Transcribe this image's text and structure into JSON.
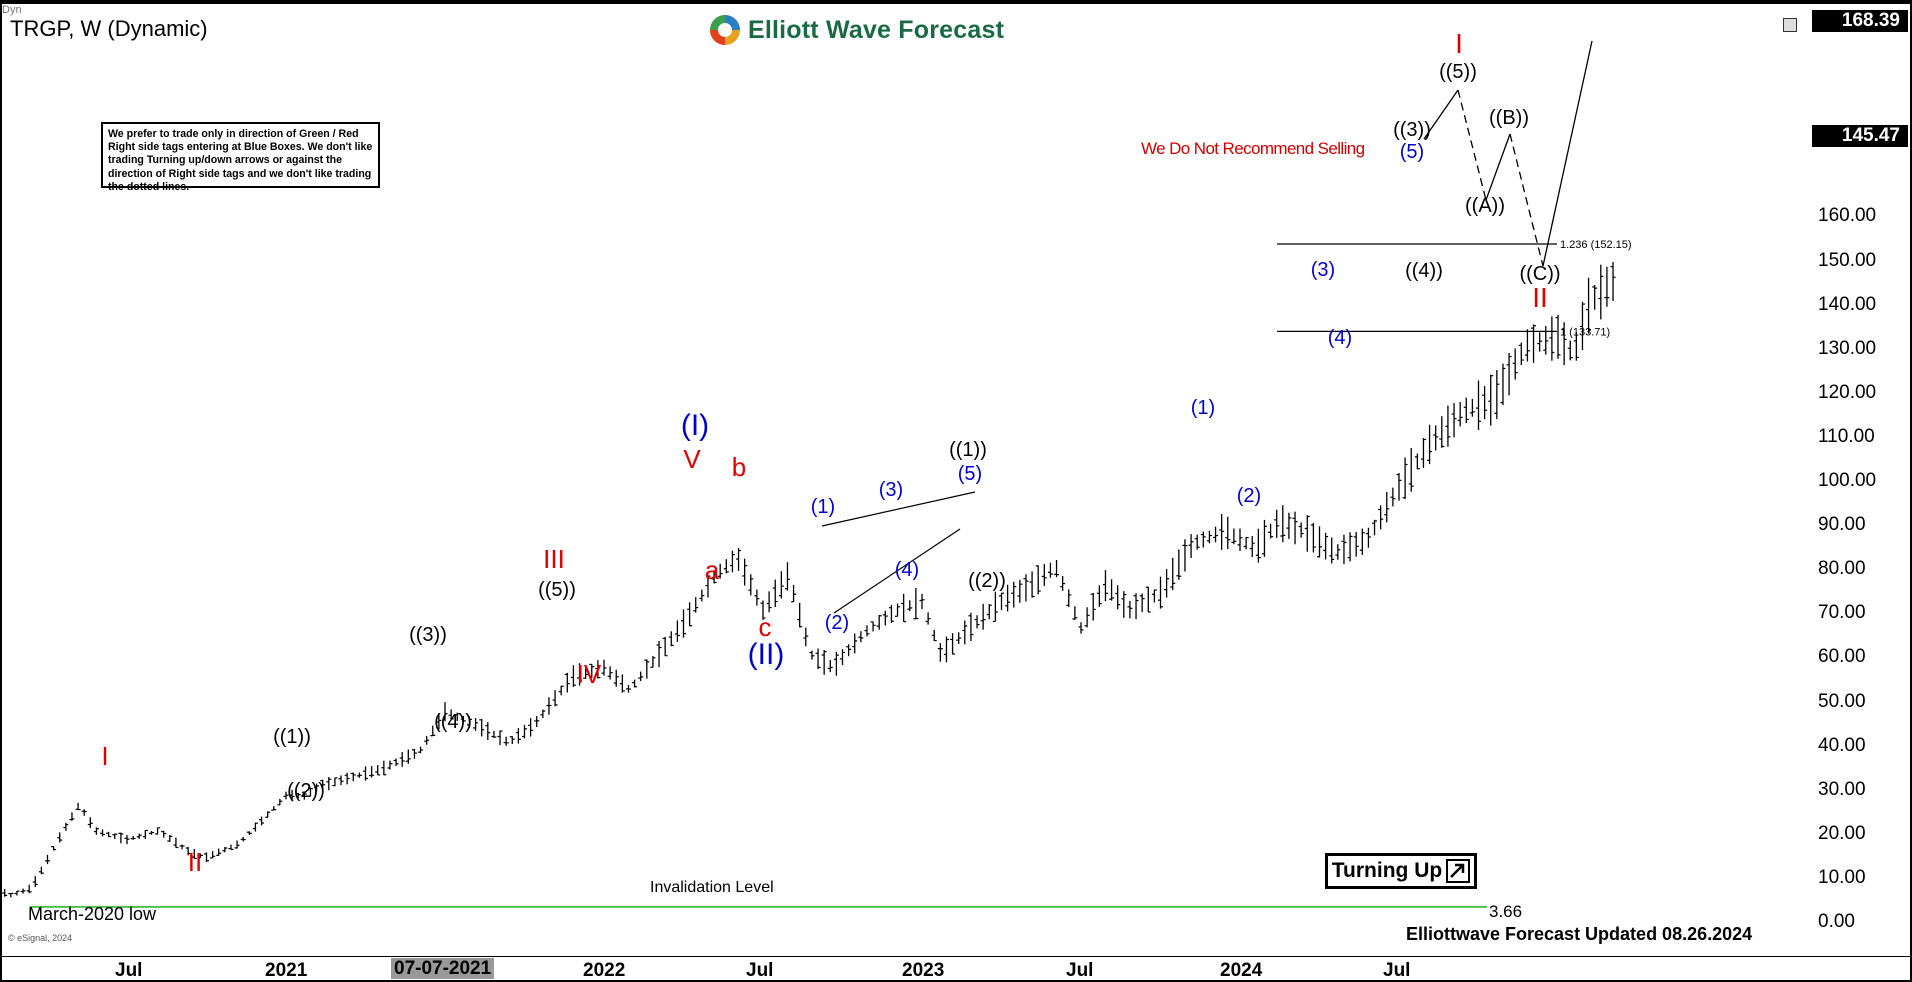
{
  "header": {
    "symbol": "TRGP, W (Dynamic)",
    "logo_text": "Elliott Wave Forecast",
    "note": "We prefer to trade only in direction of Green / Red Right side tags entering at Blue Boxes. We don't like trading Turning up/down arrows or against the direction of Right side tags and we don't like trading the dotted lines.",
    "warning": "We Do Not Recommend Selling",
    "turning_label": "Turning Up",
    "updated": "Elliottwave Forecast Updated 08.26.2024",
    "esignal": "© eSignal, 2024",
    "dyn": "Dyn"
  },
  "price_tags": {
    "top": "168.39",
    "last": "145.47"
  },
  "annotations": {
    "march_low": "March-2020 low",
    "invalidation": "Invalidation Level",
    "invalidation_value": "3.66",
    "fib_1236": "1.236 (152.15)",
    "fib_1": "1 (133.71)"
  },
  "chart_data": {
    "type": "bar",
    "title": "TRGP, W (Dynamic)",
    "ylim": [
      0,
      168.39
    ],
    "y_ticks": [
      "160.00",
      "150.00",
      "140.00",
      "130.00",
      "120.00",
      "110.00",
      "100.00",
      "90.00",
      "80.00",
      "70.00",
      "60.00",
      "50.00",
      "40.00",
      "30.00",
      "20.00",
      "10.00",
      "0.00"
    ],
    "x_ticks": [
      {
        "label": "Jul",
        "t": 2020.5
      },
      {
        "label": "2021",
        "t": 2021.0
      },
      {
        "label": "07-07-2021",
        "t": 2021.5,
        "highlight": true
      },
      {
        "label": "2022",
        "t": 2022.0
      },
      {
        "label": "Jul",
        "t": 2022.5
      },
      {
        "label": "2023",
        "t": 2023.0
      },
      {
        "label": "Jul",
        "t": 2023.5
      },
      {
        "label": "2024",
        "t": 2024.0
      },
      {
        "label": "Jul",
        "t": 2024.5
      }
    ],
    "price_path": [
      [
        2020.0,
        40
      ],
      [
        2020.05,
        28
      ],
      [
        2020.08,
        13
      ],
      [
        2020.12,
        5
      ],
      [
        2020.2,
        7
      ],
      [
        2020.3,
        20
      ],
      [
        2020.35,
        26
      ],
      [
        2020.4,
        20
      ],
      [
        2020.5,
        18
      ],
      [
        2020.6,
        20
      ],
      [
        2020.7,
        15
      ],
      [
        2020.75,
        14
      ],
      [
        2020.85,
        17
      ],
      [
        2020.92,
        22
      ],
      [
        2021.0,
        28
      ],
      [
        2021.06,
        28
      ],
      [
        2021.1,
        30
      ],
      [
        2021.2,
        32
      ],
      [
        2021.3,
        34
      ],
      [
        2021.42,
        38
      ],
      [
        2021.5,
        47
      ],
      [
        2021.6,
        44
      ],
      [
        2021.7,
        40
      ],
      [
        2021.78,
        44
      ],
      [
        2021.9,
        55
      ],
      [
        2022.0,
        57
      ],
      [
        2022.08,
        52
      ],
      [
        2022.15,
        58
      ],
      [
        2022.25,
        67
      ],
      [
        2022.35,
        78
      ],
      [
        2022.42,
        82
      ],
      [
        2022.5,
        70
      ],
      [
        2022.58,
        78
      ],
      [
        2022.65,
        60
      ],
      [
        2022.72,
        57
      ],
      [
        2022.82,
        65
      ],
      [
        2022.92,
        70
      ],
      [
        2023.0,
        72
      ],
      [
        2023.06,
        60
      ],
      [
        2023.15,
        66
      ],
      [
        2023.25,
        72
      ],
      [
        2023.35,
        76
      ],
      [
        2023.42,
        80
      ],
      [
        2023.5,
        66
      ],
      [
        2023.58,
        76
      ],
      [
        2023.65,
        70
      ],
      [
        2023.75,
        74
      ],
      [
        2023.85,
        85
      ],
      [
        2023.95,
        88
      ],
      [
        2024.05,
        84
      ],
      [
        2024.12,
        90
      ],
      [
        2024.2,
        88
      ],
      [
        2024.3,
        83
      ],
      [
        2024.4,
        86
      ],
      [
        2024.5,
        98
      ],
      [
        2024.6,
        108
      ],
      [
        2024.7,
        115
      ],
      [
        2024.8,
        118
      ],
      [
        2024.9,
        130
      ],
      [
        2025.0,
        132
      ],
      [
        2025.05,
        128
      ],
      [
        2025.1,
        140
      ],
      [
        2025.18,
        145
      ]
    ],
    "projection_solid": [
      [
        2024.7,
        145.47
      ],
      [
        2024.76,
        155
      ],
      [
        2024.82,
        134
      ],
      [
        2024.9,
        147
      ],
      [
        2024.97,
        121
      ],
      [
        2025.04,
        163
      ]
    ],
    "levels": [
      {
        "name": "fib_1236",
        "value": 152.15
      },
      {
        "name": "fib_1",
        "value": 133.71
      },
      {
        "name": "invalidation",
        "value": 3.66
      }
    ],
    "wave_labels": [
      {
        "text": "I",
        "color": "red"
      },
      {
        "text": "II",
        "color": "red"
      },
      {
        "text": "((1))",
        "color": "black"
      },
      {
        "text": "((2))",
        "color": "black"
      },
      {
        "text": "((3))",
        "color": "black"
      },
      {
        "text": "((4))",
        "color": "black"
      },
      {
        "text": "((5))",
        "color": "black"
      },
      {
        "text": "III",
        "color": "red"
      },
      {
        "text": "IV",
        "color": "red"
      },
      {
        "text": "V",
        "color": "red"
      },
      {
        "text": "(I)",
        "color": "blue"
      },
      {
        "text": "a",
        "color": "red"
      },
      {
        "text": "b",
        "color": "red"
      },
      {
        "text": "c",
        "color": "red"
      },
      {
        "text": "(II)",
        "color": "blue"
      },
      {
        "text": "(1)",
        "color": "blue"
      },
      {
        "text": "(2)",
        "color": "blue"
      },
      {
        "text": "(3)",
        "color": "blue"
      },
      {
        "text": "(4)",
        "color": "blue"
      },
      {
        "text": "(5)",
        "color": "blue"
      },
      {
        "text": "((1))",
        "color": "black"
      },
      {
        "text": "((2))",
        "color": "black"
      },
      {
        "text": "(1)",
        "color": "blue"
      },
      {
        "text": "(2)",
        "color": "blue"
      },
      {
        "text": "(3)",
        "color": "blue"
      },
      {
        "text": "(4)",
        "color": "blue"
      },
      {
        "text": "(5)",
        "color": "blue"
      },
      {
        "text": "((3))",
        "color": "black"
      },
      {
        "text": "((4))",
        "color": "black"
      },
      {
        "text": "((5))",
        "color": "black"
      },
      {
        "text": "I",
        "color": "red"
      },
      {
        "text": "((A))",
        "color": "black"
      },
      {
        "text": "((B))",
        "color": "black"
      },
      {
        "text": "((C))",
        "color": "black"
      },
      {
        "text": "II",
        "color": "red"
      }
    ],
    "colors": {
      "red": "#e00000",
      "blue": "#0000cc",
      "black": "#000000",
      "green": "#4cc24c"
    }
  }
}
